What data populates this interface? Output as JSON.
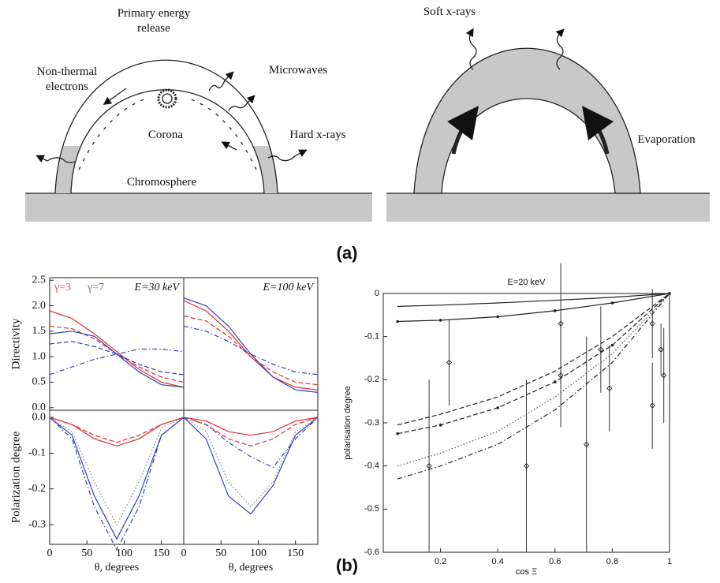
{
  "diagram": {
    "left_labels": [
      "Primary energy release",
      "Non-thermal electrons",
      "Microwaves",
      "Corona",
      "Hard x-rays",
      "Chromosphere"
    ],
    "right_labels": [
      "Soft x-rays",
      "Evaporation"
    ]
  },
  "panel_labels": [
    "(a)",
    "(b)"
  ],
  "chart_data": [
    {
      "type": "line",
      "title": "E=30 keV",
      "ylabel": "Directivity",
      "annotations": [
        {
          "text": "γ=3",
          "color": "#e05050"
        },
        {
          "text": "γ=7",
          "color": "#6070d0"
        }
      ],
      "xlim": [
        0,
        180
      ],
      "ylim": [
        -0.05,
        2.55
      ],
      "yticks": [
        {
          "value": 0,
          "label": "0.0"
        },
        0.5,
        {
          "value": 1,
          "label": "1.0"
        },
        1.5,
        {
          "value": 2,
          "label": "2.0"
        },
        2.5
      ],
      "x": [
        0,
        30,
        60,
        90,
        120,
        150,
        180
      ],
      "series": [
        {
          "color": "#e03030",
          "dash": "solid",
          "values": [
            1.9,
            1.75,
            1.45,
            1.1,
            0.75,
            0.5,
            0.4
          ]
        },
        {
          "color": "#e03030",
          "dash": "dashed",
          "values": [
            1.6,
            1.55,
            1.35,
            1.05,
            0.8,
            0.6,
            0.5
          ]
        },
        {
          "color": "#3040c0",
          "dash": "solid",
          "values": [
            1.45,
            1.5,
            1.4,
            1.05,
            0.7,
            0.45,
            0.4
          ]
        },
        {
          "color": "#3040c0",
          "dash": "dashdot",
          "values": [
            0.65,
            0.8,
            0.95,
            1.05,
            1.15,
            1.15,
            1.1
          ]
        },
        {
          "color": "#3040c0",
          "dash": "dashed",
          "values": [
            1.25,
            1.3,
            1.2,
            1.05,
            0.85,
            0.7,
            0.65
          ]
        }
      ]
    },
    {
      "type": "line",
      "title": "E=100 keV",
      "xlim": [
        0,
        180
      ],
      "ylim": [
        -0.05,
        2.55
      ],
      "x": [
        0,
        30,
        60,
        90,
        120,
        150,
        180
      ],
      "series": [
        {
          "color": "#e03030",
          "dash": "solid",
          "values": [
            2.1,
            1.9,
            1.5,
            1.0,
            0.6,
            0.4,
            0.35
          ]
        },
        {
          "color": "#e03030",
          "dash": "dashed",
          "values": [
            1.8,
            1.7,
            1.4,
            1.0,
            0.7,
            0.5,
            0.45
          ]
        },
        {
          "color": "#3040c0",
          "dash": "solid",
          "values": [
            2.15,
            2.0,
            1.6,
            1.05,
            0.6,
            0.35,
            0.3
          ]
        },
        {
          "color": "#3040c0",
          "dash": "dashdot",
          "values": [
            1.6,
            1.5,
            1.3,
            1.05,
            0.85,
            0.7,
            0.65
          ]
        }
      ]
    },
    {
      "type": "line",
      "ylabel": "Polarization degree",
      "xlabel": "θ, degrees",
      "xlim": [
        0,
        180
      ],
      "ylim": [
        -0.355,
        0.02
      ],
      "xticks": [
        0,
        50,
        100,
        150
      ],
      "yticks": [
        {
          "value": 0,
          "label": "0.0"
        },
        -0.1,
        -0.2,
        -0.3
      ],
      "x": [
        0,
        30,
        60,
        90,
        120,
        150,
        180
      ],
      "series": [
        {
          "color": "#e03030",
          "dash": "solid",
          "values": [
            0,
            -0.02,
            -0.06,
            -0.08,
            -0.06,
            -0.02,
            0
          ]
        },
        {
          "color": "#e03030",
          "dash": "dashed",
          "values": [
            0,
            -0.02,
            -0.05,
            -0.07,
            -0.05,
            -0.02,
            0
          ]
        },
        {
          "color": "#3040c0",
          "dash": "solid",
          "values": [
            0,
            -0.05,
            -0.22,
            -0.34,
            -0.22,
            -0.05,
            0
          ]
        },
        {
          "color": "#3040c0",
          "dash": "dashdot",
          "values": [
            0,
            -0.06,
            -0.25,
            -0.37,
            -0.25,
            -0.05,
            0
          ]
        },
        {
          "color": "#888888",
          "dash": "dotted",
          "values": [
            0,
            -0.04,
            -0.18,
            -0.3,
            -0.18,
            -0.03,
            0
          ]
        }
      ]
    },
    {
      "type": "line",
      "xlabel": "θ, degrees",
      "xlim": [
        0,
        180
      ],
      "ylim": [
        -0.355,
        0.02
      ],
      "xticks": [
        0,
        50,
        100,
        150
      ],
      "x": [
        0,
        30,
        60,
        90,
        120,
        150,
        180
      ],
      "series": [
        {
          "color": "#e03030",
          "dash": "solid",
          "values": [
            0,
            -0.01,
            -0.04,
            -0.05,
            -0.04,
            -0.01,
            0
          ]
        },
        {
          "color": "#e03030",
          "dash": "dashed",
          "values": [
            0,
            -0.02,
            -0.06,
            -0.08,
            -0.06,
            -0.02,
            0
          ]
        },
        {
          "color": "#3040c0",
          "dash": "solid",
          "values": [
            0,
            -0.06,
            -0.22,
            -0.27,
            -0.19,
            -0.05,
            0
          ]
        },
        {
          "color": "#3040c0",
          "dash": "dashdot",
          "values": [
            0,
            -0.02,
            -0.07,
            -0.11,
            -0.14,
            -0.06,
            0
          ]
        },
        {
          "color": "#888888",
          "dash": "dotted",
          "values": [
            0,
            -0.04,
            -0.18,
            -0.25,
            -0.18,
            -0.04,
            0
          ]
        }
      ]
    },
    {
      "type": "line",
      "title": "E=20 keV",
      "xlabel": "cos Ξ",
      "ylabel": "polarisation degree",
      "xlim": [
        0,
        1
      ],
      "ylim": [
        -0.6,
        0
      ],
      "xticks": [
        0.2,
        0.4,
        0.6,
        0.8,
        1
      ],
      "yticks": [
        0,
        -0.1,
        -0.2,
        -0.3,
        -0.4,
        -0.5,
        -0.6
      ],
      "x": [
        0.05,
        0.2,
        0.4,
        0.6,
        0.8,
        1
      ],
      "series": [
        {
          "color": "#222222",
          "dash": "solid",
          "values": [
            -0.03,
            -0.027,
            -0.022,
            -0.016,
            -0.009,
            0
          ]
        },
        {
          "color": "#222222",
          "dash": "solid",
          "marker": true,
          "values": [
            -0.065,
            -0.062,
            -0.054,
            -0.04,
            -0.022,
            0
          ]
        },
        {
          "color": "#222222",
          "dash": "dashed",
          "values": [
            -0.305,
            -0.28,
            -0.24,
            -0.18,
            -0.1,
            0
          ]
        },
        {
          "color": "#222222",
          "dash": "dashed",
          "marker": true,
          "values": [
            -0.325,
            -0.305,
            -0.265,
            -0.205,
            -0.12,
            0
          ]
        },
        {
          "color": "#555555",
          "dash": "dotted",
          "values": [
            -0.4,
            -0.37,
            -0.32,
            -0.24,
            -0.14,
            0
          ]
        },
        {
          "color": "#222222",
          "dash": "dashdot",
          "values": [
            -0.43,
            -0.4,
            -0.35,
            -0.27,
            -0.16,
            0
          ]
        }
      ],
      "points": {
        "x": [
          0.16,
          0.23,
          0.5,
          0.62,
          0.62,
          0.71,
          0.76,
          0.79,
          0.94,
          0.94,
          0.97,
          0.98
        ],
        "values": [
          -0.4,
          -0.16,
          -0.4,
          -0.07,
          -0.19,
          -0.35,
          -0.13,
          -0.22,
          -0.26,
          -0.07,
          -0.13,
          -0.19
        ],
        "errors": [
          0.2,
          0.1,
          0.2,
          0.14,
          0.12,
          0.25,
          0.1,
          0.1,
          0.1,
          0.08,
          0.06,
          0.11
        ]
      }
    }
  ]
}
